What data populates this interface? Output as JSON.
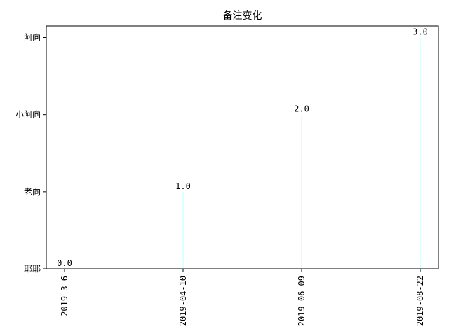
{
  "chart_data": {
    "type": "bar",
    "title": "备注变化",
    "xlabel": "",
    "ylabel": "",
    "categories": [
      "2019-3-6",
      "2019-04-10",
      "2019-06-09",
      "2019-08-22"
    ],
    "values": [
      0.0,
      1.0,
      2.0,
      3.0
    ],
    "data_labels": [
      "0.0",
      "1.0",
      "2.0",
      "3.0"
    ],
    "y_ticks": [
      {
        "value": 0,
        "label": "耶耶"
      },
      {
        "value": 1,
        "label": "老向"
      },
      {
        "value": 2,
        "label": "小阿向"
      },
      {
        "value": 3,
        "label": "阿向"
      }
    ],
    "ylim": [
      0,
      3.15
    ],
    "bar_color": "#e0ffff",
    "grid": false,
    "legend": "none"
  }
}
